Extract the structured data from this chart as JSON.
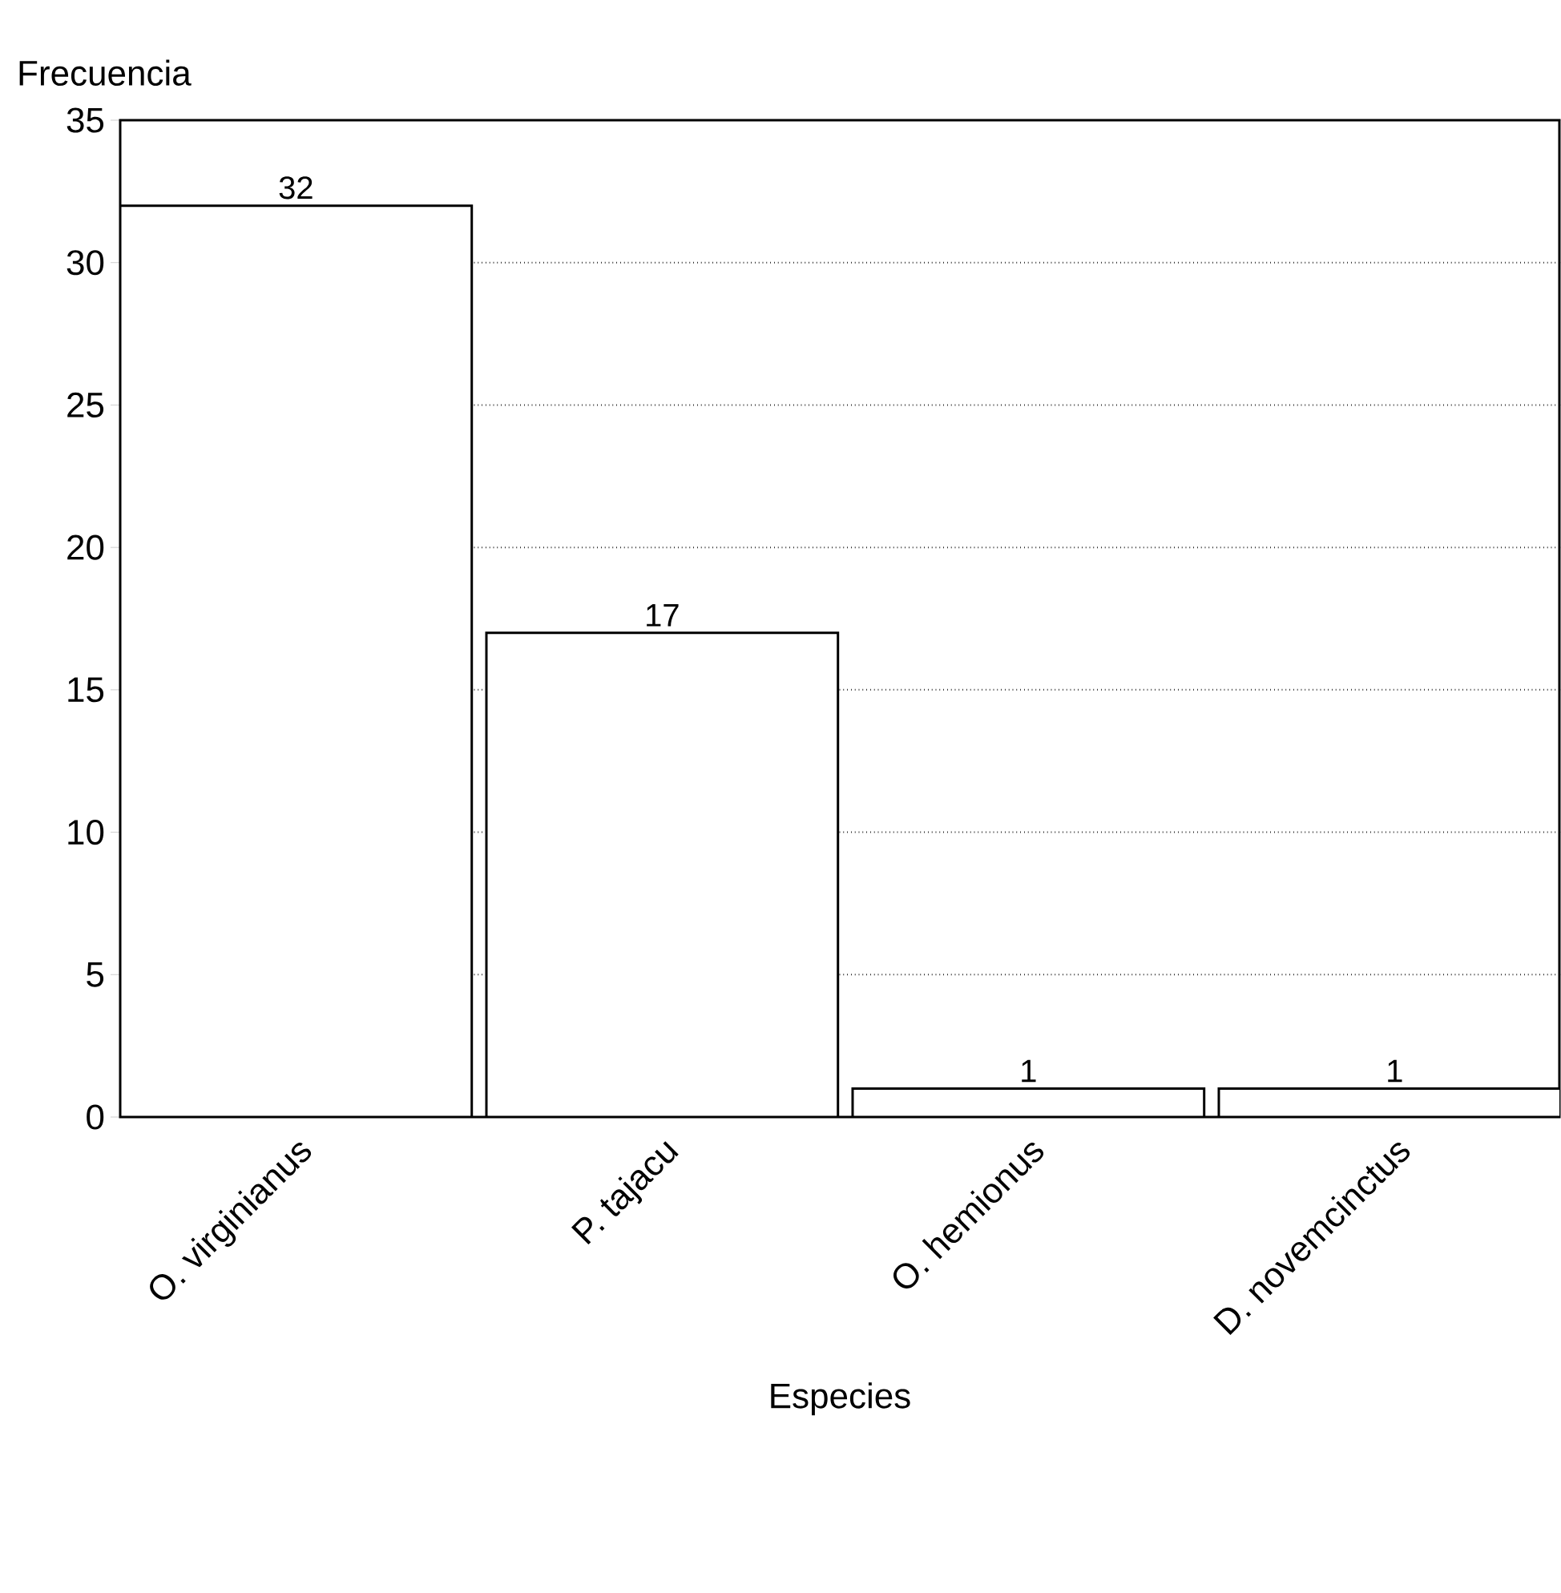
{
  "chart_data": {
    "type": "bar",
    "ylabel": "Frecuencia",
    "xlabel": "Especies",
    "categories": [
      "O. virginianus",
      "P. tajacu",
      "O. hemionus",
      "D. novemcinctus"
    ],
    "values": [
      32,
      17,
      1,
      1
    ],
    "color": "#ffffff",
    "ylim": [
      0,
      35
    ],
    "yticks": [
      0,
      5,
      10,
      15,
      20,
      25,
      30,
      35
    ],
    "grid": "y",
    "data_labels": true
  }
}
